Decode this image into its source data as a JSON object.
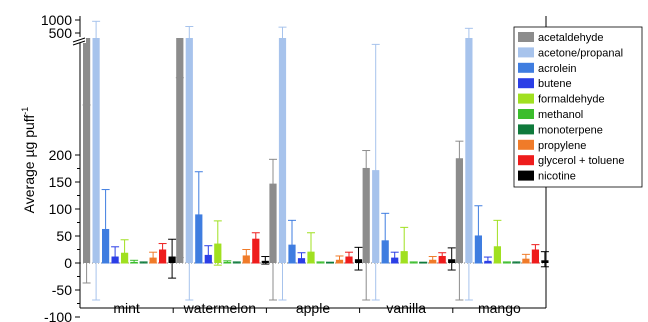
{
  "chart_data": {
    "type": "bar",
    "ylabel": "Average µg puff",
    "ylabel_superscript": "-1",
    "categories": [
      "mint",
      "watermelon",
      "apple",
      "vanilla",
      "mango"
    ],
    "y_ticks_lower": [
      "-100",
      "-50",
      "0",
      "50",
      "100",
      "150",
      "200"
    ],
    "y_ticks_upper": [
      "500",
      "1000"
    ],
    "y_axis_break": true,
    "legend_position": "top-right",
    "series": [
      {
        "name": "acetaldehyde",
        "color": "#8c8c8c",
        "values": [
          283,
          350,
          147,
          176,
          194
        ],
        "err_plus": [
          40,
          40,
          45,
          35,
          40
        ],
        "err_minus": [
          320,
          340,
          238,
          257,
          320
        ]
      },
      {
        "name": "acetone/propanal",
        "color": "#a7c3ec",
        "values": [
          350,
          350,
          345,
          172,
          300
        ],
        "err_plus": [
          600,
          400,
          380,
          300,
          380
        ],
        "err_minus": [
          450,
          445,
          440,
          272,
          480
        ]
      },
      {
        "name": "acrolein",
        "color": "#3f7de0",
        "values": [
          63,
          90,
          34,
          42,
          51
        ],
        "err_plus": [
          73,
          79,
          45,
          50,
          55
        ],
        "err_minus": [
          63,
          90,
          34,
          42,
          51
        ]
      },
      {
        "name": "butene",
        "color": "#2b3ee6",
        "values": [
          12,
          15,
          9,
          10,
          4
        ],
        "err_plus": [
          18,
          17,
          10,
          10,
          7
        ],
        "err_minus": [
          12,
          15,
          9,
          10,
          4
        ]
      },
      {
        "name": "formaldehyde",
        "color": "#a0e020",
        "values": [
          19,
          36,
          21,
          22,
          31
        ],
        "err_plus": [
          24,
          42,
          35,
          44,
          48
        ],
        "err_minus": [
          19,
          40,
          21,
          22,
          31
        ]
      },
      {
        "name": "methanol",
        "color": "#3bbd2c",
        "values": [
          2,
          2,
          1,
          1,
          1
        ],
        "err_plus": [
          3,
          2,
          1,
          1,
          1
        ],
        "err_minus": [
          2,
          2,
          1,
          1,
          1
        ]
      },
      {
        "name": "monoterpene",
        "color": "#0f7a3c",
        "values": [
          1,
          1,
          0.5,
          0.5,
          1
        ],
        "err_plus": [
          1,
          1,
          1,
          1,
          1
        ],
        "err_minus": [
          1,
          1,
          0.5,
          0.5,
          1
        ]
      },
      {
        "name": "propylene",
        "color": "#f07b29",
        "values": [
          10,
          14,
          6,
          6,
          8
        ],
        "err_plus": [
          10,
          11,
          7,
          6,
          8
        ],
        "err_minus": [
          10,
          14,
          6,
          6,
          8
        ]
      },
      {
        "name": "glycerol + toluene",
        "color": "#ee1c1c",
        "values": [
          25,
          45,
          12,
          13,
          25
        ],
        "err_plus": [
          11,
          11,
          8,
          6,
          9
        ],
        "err_minus": [
          25,
          45,
          12,
          13,
          25
        ]
      },
      {
        "name": "nicotine",
        "color": "#000000",
        "values": [
          12,
          4,
          7,
          7,
          5
        ],
        "err_plus": [
          32,
          8,
          22,
          21,
          16
        ],
        "err_minus": [
          40,
          6,
          20,
          20,
          12
        ]
      }
    ]
  }
}
